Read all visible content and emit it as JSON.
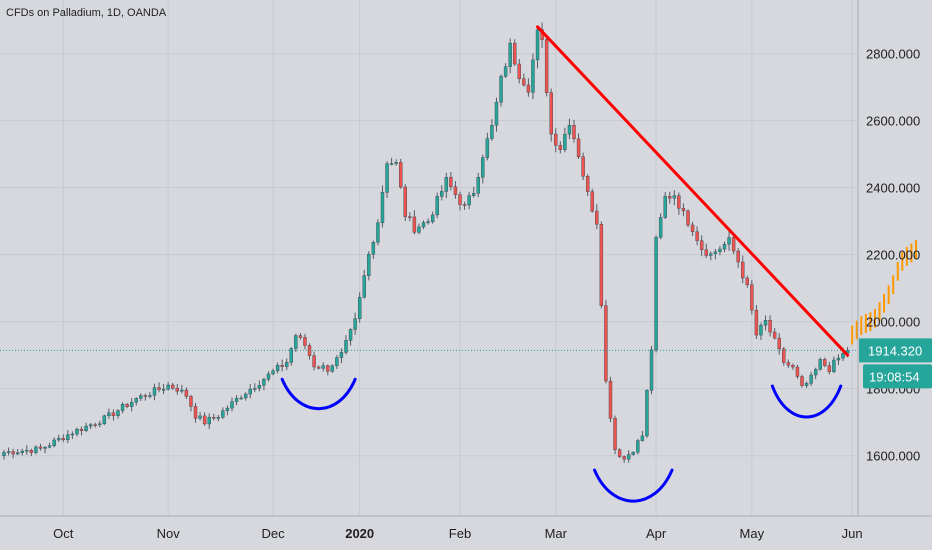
{
  "chart_data": {
    "type": "candlestick",
    "title": "CFDs on Palladium, 1D, OANDA",
    "x_ticks": [
      {
        "label": "Oct",
        "bold": false
      },
      {
        "label": "Nov",
        "bold": false
      },
      {
        "label": "Dec",
        "bold": false
      },
      {
        "label": "2020",
        "bold": true
      },
      {
        "label": "Feb",
        "bold": false
      },
      {
        "label": "Mar",
        "bold": false
      },
      {
        "label": "Apr",
        "bold": false
      },
      {
        "label": "May",
        "bold": false
      },
      {
        "label": "Jun",
        "bold": false
      }
    ],
    "y_ticks": [
      "1600.000",
      "1800.000",
      "2000.000",
      "2200.000",
      "2400.000",
      "2600.000",
      "2800.000"
    ],
    "ylim": [
      1420,
      2960
    ],
    "grid": true,
    "last_price": {
      "value": 1914.32,
      "label": "1914.320",
      "color": "#26a69a"
    },
    "countdown": {
      "label": "19:08:54",
      "color": "#26a69a"
    },
    "colors": {
      "up": "#26a69a",
      "down": "#ef5350",
      "trendline": "#ff0000",
      "arcs": "#0000ff",
      "projection": "#ff9800",
      "background": "#d6d8de",
      "grid": "#c7cad1"
    },
    "anchors": [
      [
        0,
        1610
      ],
      [
        8,
        1620
      ],
      [
        15,
        1670
      ],
      [
        22,
        1710
      ],
      [
        29,
        1770
      ],
      [
        36,
        1810
      ],
      [
        38,
        1800
      ],
      [
        40,
        1780
      ],
      [
        42,
        1720
      ],
      [
        44,
        1700
      ],
      [
        47,
        1720
      ],
      [
        52,
        1780
      ],
      [
        57,
        1830
      ],
      [
        62,
        1880
      ],
      [
        64,
        1960
      ],
      [
        66,
        1930
      ],
      [
        68,
        1870
      ],
      [
        71,
        1860
      ],
      [
        74,
        1900
      ],
      [
        77,
        2000
      ],
      [
        80,
        2200
      ],
      [
        82,
        2300
      ],
      [
        84,
        2480
      ],
      [
        86,
        2470
      ],
      [
        88,
        2320
      ],
      [
        90,
        2280
      ],
      [
        93,
        2300
      ],
      [
        95,
        2360
      ],
      [
        97,
        2420
      ],
      [
        99,
        2380
      ],
      [
        101,
        2340
      ],
      [
        103,
        2390
      ],
      [
        105,
        2500
      ],
      [
        107,
        2580
      ],
      [
        109,
        2720
      ],
      [
        111,
        2820
      ],
      [
        113,
        2740
      ],
      [
        115,
        2700
      ],
      [
        117,
        2860
      ],
      [
        118,
        2830
      ],
      [
        120,
        2560
      ],
      [
        122,
        2520
      ],
      [
        124,
        2600
      ],
      [
        126,
        2500
      ],
      [
        128,
        2380
      ],
      [
        130,
        2300
      ],
      [
        132,
        1820
      ],
      [
        134,
        1620
      ],
      [
        136,
        1590
      ],
      [
        138,
        1620
      ],
      [
        140,
        1660
      ],
      [
        142,
        1920
      ],
      [
        143,
        2240
      ],
      [
        145,
        2370
      ],
      [
        147,
        2380
      ],
      [
        149,
        2320
      ],
      [
        151,
        2280
      ],
      [
        153,
        2220
      ],
      [
        155,
        2200
      ],
      [
        157,
        2220
      ],
      [
        159,
        2240
      ],
      [
        161,
        2180
      ],
      [
        163,
        2100
      ],
      [
        165,
        1960
      ],
      [
        167,
        2000
      ],
      [
        169,
        1940
      ],
      [
        171,
        1880
      ],
      [
        173,
        1860
      ],
      [
        175,
        1800
      ],
      [
        177,
        1830
      ],
      [
        179,
        1880
      ],
      [
        181,
        1860
      ],
      [
        183,
        1890
      ],
      [
        185,
        1914.32
      ]
    ],
    "trendline": {
      "start": [
        117,
        2880
      ],
      "end": [
        185,
        1900
      ]
    },
    "arcs": [
      {
        "center_x": 69,
        "bottom": 1738,
        "depth": 90,
        "half_width": 8
      },
      {
        "center_x": 138,
        "bottom": 1462,
        "depth": 95,
        "half_width": 8.5
      },
      {
        "center_x": 176,
        "bottom": 1713,
        "depth": 95,
        "half_width": 7.5
      }
    ],
    "projection": [
      [
        186,
        1960
      ],
      [
        187,
        1975
      ],
      [
        188,
        1988
      ],
      [
        189,
        1995
      ],
      [
        190,
        2000
      ],
      [
        191,
        2010
      ],
      [
        192,
        2030
      ],
      [
        193,
        2055
      ],
      [
        194,
        2080
      ],
      [
        195,
        2110
      ],
      [
        196,
        2150
      ],
      [
        197,
        2180
      ],
      [
        198,
        2195
      ],
      [
        199,
        2205
      ],
      [
        200,
        2215
      ]
    ],
    "x_tick_index": [
      13,
      36,
      59,
      78,
      100,
      121,
      143,
      164,
      186
    ]
  }
}
